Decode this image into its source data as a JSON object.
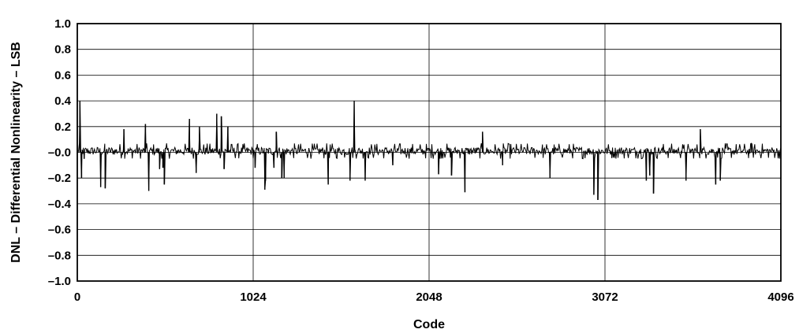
{
  "chart_data": {
    "type": "line",
    "title": "",
    "xlabel": "Code",
    "ylabel": "DNL – Differential Nonlinearity – LSB",
    "xlim": [
      0,
      4096
    ],
    "ylim": [
      -1.0,
      1.0
    ],
    "x_ticks": [
      0,
      1024,
      2048,
      3072,
      4096
    ],
    "x_tick_labels": [
      "0",
      "1024",
      "2048",
      "3072",
      "4096"
    ],
    "y_ticks": [
      1.0,
      0.8,
      0.6,
      0.4,
      0.2,
      0.0,
      -0.2,
      -0.4,
      -0.6,
      -0.8,
      -1.0
    ],
    "y_tick_labels": [
      "1.0",
      "0.8",
      "0.6",
      "0.4",
      "0.2",
      "–0.0",
      "–0.2",
      "–0.4",
      "–0.6",
      "–0.8",
      "–1.0"
    ],
    "grid": true,
    "legend": "none",
    "line_color": "#000000",
    "series": [
      {
        "baseline_noise_band": [
          -0.05,
          0.07
        ],
        "spikes": [
          {
            "x": 15,
            "y": 0.4
          },
          {
            "x": 25,
            "y": -0.2
          },
          {
            "x": 40,
            "y": -0.05
          },
          {
            "x": 136,
            "y": -0.27
          },
          {
            "x": 162,
            "y": -0.28
          },
          {
            "x": 271,
            "y": 0.18
          },
          {
            "x": 397,
            "y": 0.22
          },
          {
            "x": 416,
            "y": -0.3
          },
          {
            "x": 479,
            "y": -0.13
          },
          {
            "x": 498,
            "y": -0.12
          },
          {
            "x": 506,
            "y": -0.25
          },
          {
            "x": 653,
            "y": 0.26
          },
          {
            "x": 692,
            "y": -0.16
          },
          {
            "x": 711,
            "y": 0.2
          },
          {
            "x": 812,
            "y": 0.3
          },
          {
            "x": 838,
            "y": 0.28
          },
          {
            "x": 854,
            "y": -0.13
          },
          {
            "x": 877,
            "y": 0.2
          },
          {
            "x": 1035,
            "y": -0.12
          },
          {
            "x": 1096,
            "y": -0.22
          },
          {
            "x": 1092,
            "y": -0.29
          },
          {
            "x": 1145,
            "y": -0.12
          },
          {
            "x": 1158,
            "y": 0.16
          },
          {
            "x": 1190,
            "y": -0.2
          },
          {
            "x": 1204,
            "y": -0.2
          },
          {
            "x": 1461,
            "y": -0.25
          },
          {
            "x": 1588,
            "y": -0.22
          },
          {
            "x": 1612,
            "y": 0.4
          },
          {
            "x": 1676,
            "y": -0.22
          },
          {
            "x": 1837,
            "y": -0.1
          },
          {
            "x": 2103,
            "y": -0.17
          },
          {
            "x": 2178,
            "y": -0.18
          },
          {
            "x": 2257,
            "y": -0.31
          },
          {
            "x": 2359,
            "y": 0.16
          },
          {
            "x": 2476,
            "y": -0.1
          },
          {
            "x": 2752,
            "y": -0.2
          },
          {
            "x": 3007,
            "y": -0.33
          },
          {
            "x": 3030,
            "y": -0.37
          },
          {
            "x": 3313,
            "y": -0.22
          },
          {
            "x": 3333,
            "y": -0.18
          },
          {
            "x": 3354,
            "y": -0.32
          },
          {
            "x": 3544,
            "y": -0.22
          },
          {
            "x": 3627,
            "y": 0.18
          },
          {
            "x": 3717,
            "y": -0.25
          },
          {
            "x": 3743,
            "y": -0.22
          },
          {
            "x": 3925,
            "y": 0.07
          }
        ]
      }
    ]
  }
}
